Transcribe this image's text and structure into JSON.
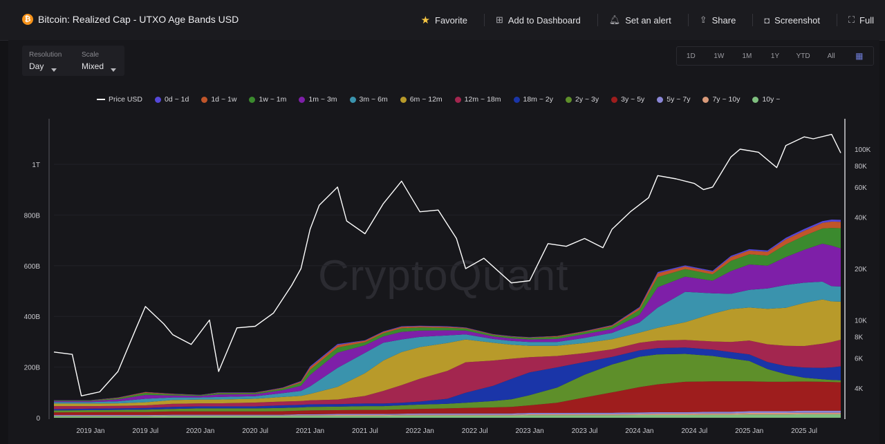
{
  "header": {
    "title": "Bitcoin: Realized Cap - UTXO Age Bands USD",
    "coin_icon": "bitcoin-icon",
    "actions": [
      {
        "label": "Favorite",
        "icon": "star-icon"
      },
      {
        "label": "Add to Dashboard",
        "icon": "dashboard-add-icon"
      },
      {
        "label": "Set an alert",
        "icon": "bell-icon"
      },
      {
        "label": "Share",
        "icon": "share-icon"
      },
      {
        "label": "Screenshot",
        "icon": "camera-icon"
      },
      {
        "label": "Full",
        "icon": "fullscreen-icon"
      }
    ]
  },
  "controls": {
    "resolution": {
      "label": "Resolution",
      "value": "Day"
    },
    "scale": {
      "label": "Scale",
      "value": "Mixed"
    }
  },
  "ranges": [
    "1D",
    "1W",
    "1M",
    "1Y",
    "YTD",
    "All"
  ],
  "range_calendar_icon": "calendar-icon",
  "watermark": "CryptoQuant",
  "colors": {
    "background": "#131316",
    "price_line": "#ffffff",
    "bands": {
      "10y ~": "#7fbf7f",
      "7y ~ 10y": "#d99a7a",
      "5y ~ 7y": "#8a86d6",
      "3y ~ 5y": "#9e1d1d",
      "2y ~ 3y": "#5e8f2a",
      "18m ~ 2y": "#1a35a8",
      "12m ~ 18m": "#a3264f",
      "6m ~ 12m": "#b89a2a",
      "3m ~ 6m": "#3a93ad",
      "1m ~ 3m": "#7e1fa8",
      "1w ~ 1m": "#3b8a2e",
      "1d ~ 1w": "#c0552a",
      "0d ~ 1d": "#5548d8"
    }
  },
  "chart_data": {
    "type": "area",
    "stacked": true,
    "legend": [
      "Price USD",
      "0d ~ 1d",
      "1d ~ 1w",
      "1w ~ 1m",
      "1m ~ 3m",
      "3m ~ 6m",
      "6m ~ 12m",
      "12m ~ 18m",
      "18m ~ 2y",
      "2y ~ 3y",
      "3y ~ 5y",
      "5y ~ 7y",
      "7y ~ 10y",
      "10y ~"
    ],
    "x_ticks": [
      "2019 Jan",
      "2019 Jul",
      "2020 Jan",
      "2020 Jul",
      "2021 Jan",
      "2021 Jul",
      "2022 Jan",
      "2022 Jul",
      "2023 Jan",
      "2023 Jul",
      "2024 Jan",
      "2024 Jul",
      "2025 Jan",
      "2025 Jul"
    ],
    "x_dates": [
      "2018-09",
      "2019-01",
      "2019-04",
      "2019-07",
      "2019-10",
      "2020-01",
      "2020-03",
      "2020-07",
      "2020-10",
      "2020-12",
      "2021-01",
      "2021-04",
      "2021-07",
      "2021-09",
      "2021-11",
      "2022-01",
      "2022-04",
      "2022-06",
      "2022-09",
      "2022-11",
      "2023-01",
      "2023-04",
      "2023-07",
      "2023-10",
      "2024-01",
      "2024-03",
      "2024-06",
      "2024-09",
      "2024-11",
      "2025-01",
      "2025-03",
      "2025-05",
      "2025-07",
      "2025-09",
      "2025-10",
      "2025-11"
    ],
    "left_axis": {
      "title": "",
      "ticks": [
        "0",
        "200B",
        "400B",
        "600B",
        "800B",
        "1T"
      ],
      "range": [
        0,
        1150
      ],
      "unit": "billion USD"
    },
    "right_axis": {
      "title": "",
      "scale": "log",
      "ticks": [
        "4K",
        "6K",
        "8K",
        "10K",
        "20K",
        "40K",
        "60K",
        "80K",
        "100K"
      ],
      "range": [
        3000,
        130000
      ]
    },
    "series_bands": [
      {
        "name": "10y ~",
        "values": [
          6,
          6,
          6,
          6,
          7,
          7,
          7,
          7,
          7,
          8,
          8,
          8,
          8,
          8,
          9,
          9,
          9,
          9,
          9,
          9,
          10,
          10,
          10,
          10,
          11,
          11,
          11,
          12,
          12,
          13,
          13,
          13,
          14,
          14,
          14,
          14
        ]
      },
      {
        "name": "7y ~ 10y",
        "values": [
          2,
          2,
          2,
          2,
          2,
          2,
          2,
          2,
          2,
          2,
          2,
          3,
          3,
          3,
          3,
          3,
          3,
          3,
          3,
          3,
          4,
          4,
          4,
          4,
          4,
          5,
          5,
          5,
          5,
          6,
          6,
          6,
          6,
          6,
          6,
          6
        ]
      },
      {
        "name": "5y ~ 7y",
        "values": [
          3,
          3,
          3,
          3,
          3,
          3,
          3,
          3,
          3,
          4,
          4,
          4,
          4,
          4,
          4,
          5,
          5,
          5,
          5,
          5,
          5,
          5,
          6,
          6,
          6,
          6,
          6,
          7,
          7,
          7,
          7,
          7,
          8,
          8,
          8,
          8
        ]
      },
      {
        "name": "3y ~ 5y",
        "values": [
          10,
          11,
          12,
          12,
          13,
          13,
          13,
          13,
          14,
          14,
          15,
          15,
          16,
          16,
          17,
          18,
          20,
          22,
          24,
          26,
          30,
          40,
          60,
          80,
          100,
          110,
          120,
          120,
          120,
          118,
          116,
          116,
          115,
          114,
          113,
          112
        ]
      },
      {
        "name": "2y ~ 3y",
        "values": [
          8,
          8,
          8,
          9,
          10,
          12,
          12,
          12,
          13,
          13,
          14,
          14,
          15,
          15,
          16,
          17,
          18,
          20,
          25,
          30,
          40,
          60,
          90,
          110,
          120,
          118,
          110,
          100,
          90,
          80,
          50,
          30,
          15,
          10,
          8,
          8
        ]
      },
      {
        "name": "18m ~ 2y",
        "values": [
          5,
          6,
          6,
          7,
          8,
          8,
          8,
          8,
          10,
          10,
          10,
          10,
          10,
          10,
          10,
          12,
          20,
          40,
          60,
          80,
          90,
          80,
          50,
          30,
          25,
          25,
          25,
          25,
          25,
          26,
          28,
          32,
          40,
          45,
          50,
          55
        ]
      },
      {
        "name": "12m ~ 18m",
        "values": [
          12,
          10,
          10,
          10,
          12,
          12,
          12,
          15,
          15,
          15,
          16,
          18,
          30,
          50,
          70,
          90,
          110,
          120,
          100,
          80,
          60,
          45,
          35,
          30,
          30,
          30,
          30,
          32,
          40,
          55,
          70,
          80,
          85,
          95,
          100,
          105
        ]
      },
      {
        "name": "6m ~ 12m",
        "values": [
          10,
          10,
          10,
          12,
          15,
          15,
          15,
          15,
          18,
          20,
          25,
          50,
          90,
          120,
          130,
          125,
          110,
          90,
          70,
          55,
          45,
          40,
          40,
          40,
          40,
          50,
          70,
          110,
          130,
          130,
          140,
          150,
          170,
          175,
          160,
          150
        ]
      },
      {
        "name": "3m ~ 6m",
        "values": [
          6,
          6,
          8,
          14,
          10,
          8,
          10,
          10,
          15,
          20,
          30,
          75,
          80,
          70,
          50,
          40,
          30,
          20,
          15,
          15,
          15,
          15,
          20,
          25,
          40,
          80,
          120,
          80,
          60,
          70,
          80,
          90,
          80,
          70,
          60,
          60
        ]
      },
      {
        "name": "1m ~ 3m",
        "values": [
          4,
          4,
          8,
          15,
          8,
          6,
          10,
          8,
          12,
          20,
          45,
          60,
          30,
          25,
          30,
          25,
          20,
          15,
          10,
          10,
          10,
          12,
          15,
          15,
          30,
          80,
          60,
          50,
          90,
          100,
          90,
          110,
          130,
          150,
          160,
          150
        ]
      },
      {
        "name": "1w ~ 1m",
        "values": [
          2,
          2,
          4,
          8,
          4,
          3,
          5,
          4,
          6,
          12,
          20,
          20,
          12,
          12,
          14,
          12,
          10,
          8,
          6,
          6,
          6,
          8,
          8,
          10,
          20,
          40,
          30,
          25,
          40,
          40,
          40,
          50,
          55,
          60,
          70,
          80
        ]
      },
      {
        "name": "1d ~ 1w",
        "values": [
          1,
          1,
          2,
          3,
          2,
          1,
          2,
          2,
          3,
          5,
          10,
          10,
          6,
          6,
          6,
          5,
          4,
          3,
          2,
          2,
          2,
          3,
          3,
          4,
          8,
          15,
          10,
          10,
          15,
          15,
          15,
          20,
          20,
          22,
          25,
          25
        ]
      },
      {
        "name": "0d ~ 1d",
        "values": [
          0.5,
          0.5,
          1,
          1,
          1,
          0.5,
          1,
          1,
          1,
          2,
          4,
          4,
          2,
          2,
          2,
          2,
          2,
          1,
          1,
          1,
          1,
          1,
          1,
          2,
          3,
          5,
          4,
          4,
          5,
          5,
          5,
          6,
          7,
          7,
          8,
          8
        ]
      }
    ],
    "price_series": {
      "name": "Price USD",
      "x": [
        "2018-09",
        "2018-11",
        "2018-12",
        "2019-02",
        "2019-04",
        "2019-06",
        "2019-07",
        "2019-09",
        "2019-10",
        "2019-12",
        "2020-02",
        "2020-03",
        "2020-05",
        "2020-07",
        "2020-09",
        "2020-11",
        "2020-12",
        "2021-01",
        "2021-02",
        "2021-04",
        "2021-05",
        "2021-07",
        "2021-09",
        "2021-11",
        "2022-01",
        "2022-03",
        "2022-05",
        "2022-06",
        "2022-08",
        "2022-11",
        "2023-01",
        "2023-03",
        "2023-05",
        "2023-07",
        "2023-09",
        "2023-10",
        "2023-12",
        "2024-02",
        "2024-03",
        "2024-05",
        "2024-07",
        "2024-08",
        "2024-09",
        "2024-11",
        "2024-12",
        "2025-02",
        "2025-04",
        "2025-05",
        "2025-07",
        "2025-08",
        "2025-10",
        "2025-11"
      ],
      "values": [
        6500,
        6300,
        3600,
        3800,
        5000,
        9000,
        12000,
        9500,
        8200,
        7200,
        10000,
        5000,
        9000,
        9200,
        11000,
        16000,
        20000,
        34000,
        47000,
        60000,
        38000,
        32000,
        48000,
        65000,
        43000,
        44000,
        30000,
        20000,
        23000,
        16500,
        17000,
        28000,
        27000,
        30000,
        26500,
        34000,
        43000,
        52000,
        70000,
        67000,
        63000,
        58000,
        60000,
        90000,
        100000,
        96000,
        78000,
        105000,
        118000,
        115000,
        122000,
        95000
      ]
    }
  }
}
